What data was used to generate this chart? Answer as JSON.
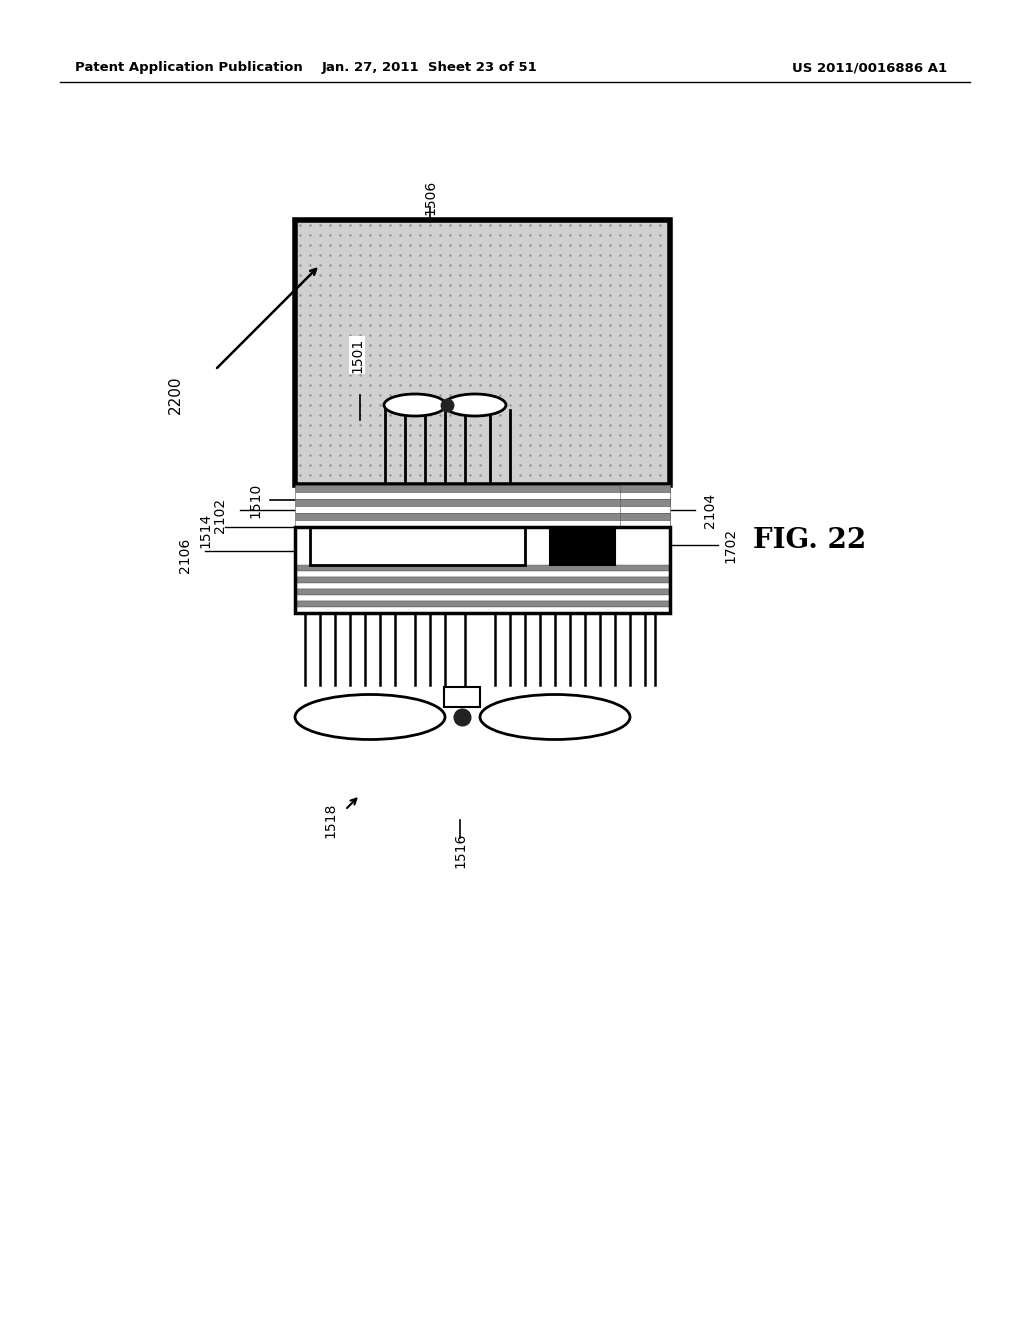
{
  "header_left": "Patent Application Publication",
  "header_mid": "Jan. 27, 2011  Sheet 23 of 51",
  "header_right": "US 2011/0016886 A1",
  "fig_label": "FIG. 22",
  "bg_color": "#ffffff",
  "line_color": "#000000"
}
